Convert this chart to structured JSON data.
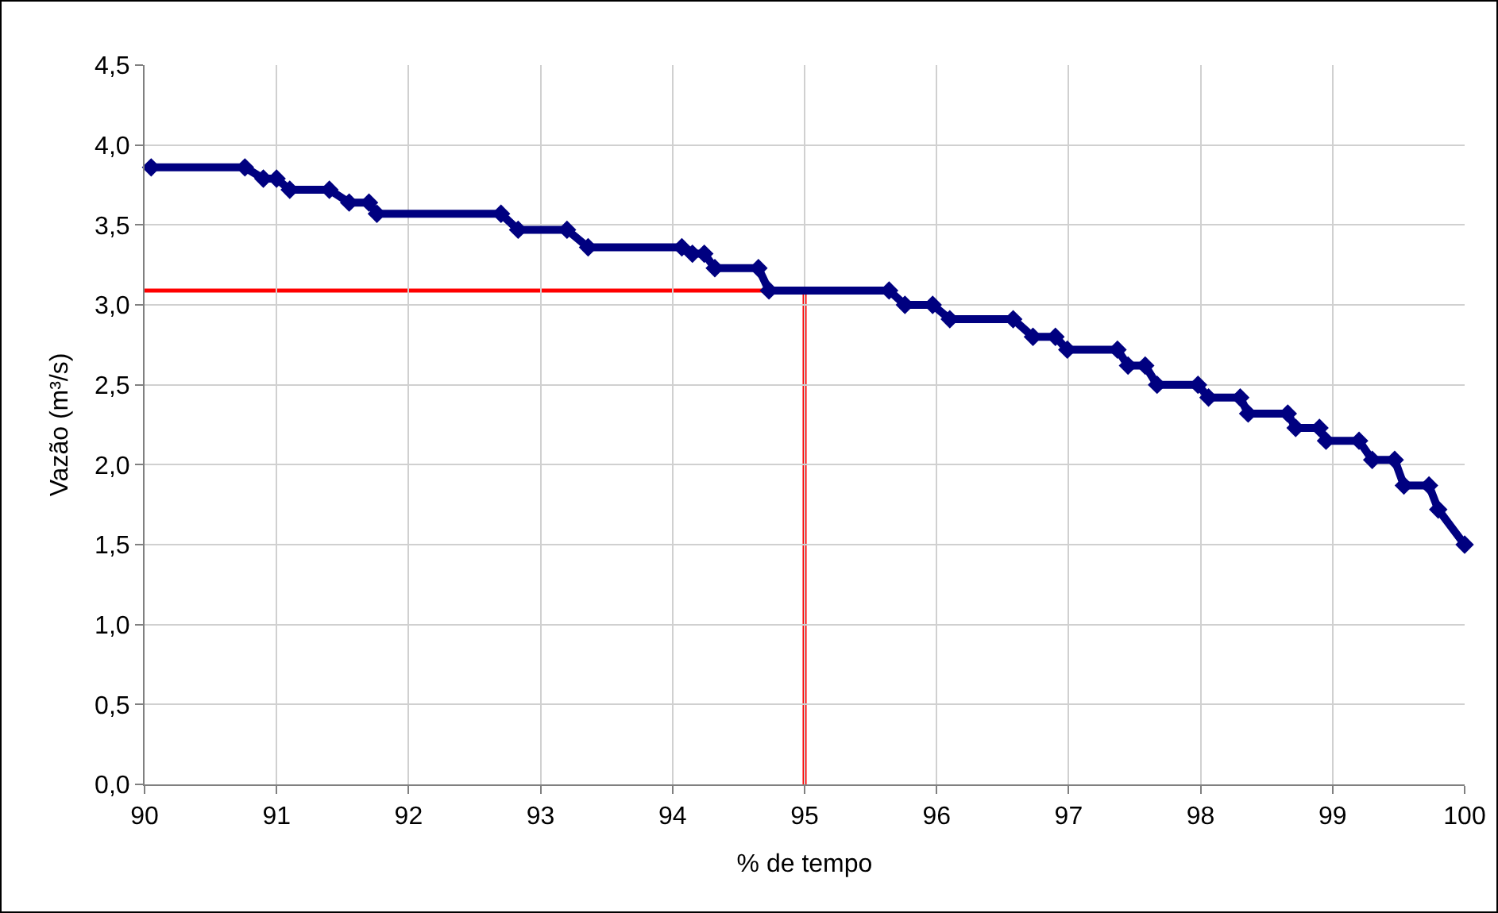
{
  "chart_data": {
    "type": "line",
    "xlabel": "% de tempo",
    "ylabel": "Vazão (m³/s)",
    "x": [
      90.05,
      90.76,
      90.9,
      91.0,
      91.1,
      91.4,
      91.55,
      91.7,
      91.76,
      92.7,
      92.83,
      93.2,
      93.36,
      94.07,
      94.15,
      94.24,
      94.32,
      94.65,
      94.73,
      95.64,
      95.76,
      95.97,
      96.1,
      96.58,
      96.73,
      96.9,
      96.99,
      97.37,
      97.45,
      97.58,
      97.67,
      97.98,
      98.06,
      98.3,
      98.36,
      98.66,
      98.72,
      98.9,
      98.95,
      99.2,
      99.3,
      99.47,
      99.54,
      99.73,
      99.8,
      100
    ],
    "series": [
      {
        "color": "#000080",
        "values": [
          3.86,
          3.86,
          3.79,
          3.79,
          3.72,
          3.72,
          3.64,
          3.64,
          3.57,
          3.57,
          3.47,
          3.47,
          3.36,
          3.36,
          3.32,
          3.32,
          3.23,
          3.23,
          3.09,
          3.09,
          3.0,
          3.0,
          2.91,
          2.91,
          2.8,
          2.8,
          2.72,
          2.72,
          2.62,
          2.62,
          2.5,
          2.5,
          2.42,
          2.42,
          2.32,
          2.32,
          2.23,
          2.23,
          2.15,
          2.15,
          2.03,
          2.03,
          1.87,
          1.87,
          1.72,
          1.5
        ]
      }
    ],
    "marker": "diamond",
    "line_style": "solid",
    "xlim": [
      90,
      100
    ],
    "xticks": [
      90,
      91,
      92,
      93,
      94,
      95,
      96,
      97,
      98,
      99,
      100
    ],
    "ylim": [
      0,
      4.5
    ],
    "yticks": [
      {
        "value": 0,
        "label": "0,0"
      },
      {
        "value": 0.5,
        "label": "0,5"
      },
      {
        "value": 1,
        "label": "1,0"
      },
      {
        "value": 1.5,
        "label": "1,5"
      },
      {
        "value": 2,
        "label": "2,0"
      },
      {
        "value": 2.5,
        "label": "2,5"
      },
      {
        "value": 3,
        "label": "3,0"
      },
      {
        "value": 3.5,
        "label": "3,5"
      },
      {
        "value": 4,
        "label": "4,0"
      },
      {
        "value": 4.5,
        "label": "4,5"
      }
    ],
    "ref_lines": [
      {
        "axis": "y",
        "value": 3.09,
        "color": "#ff0000"
      },
      {
        "axis": "x",
        "value": 95,
        "color": "#ff0000"
      }
    ],
    "grid": true
  }
}
